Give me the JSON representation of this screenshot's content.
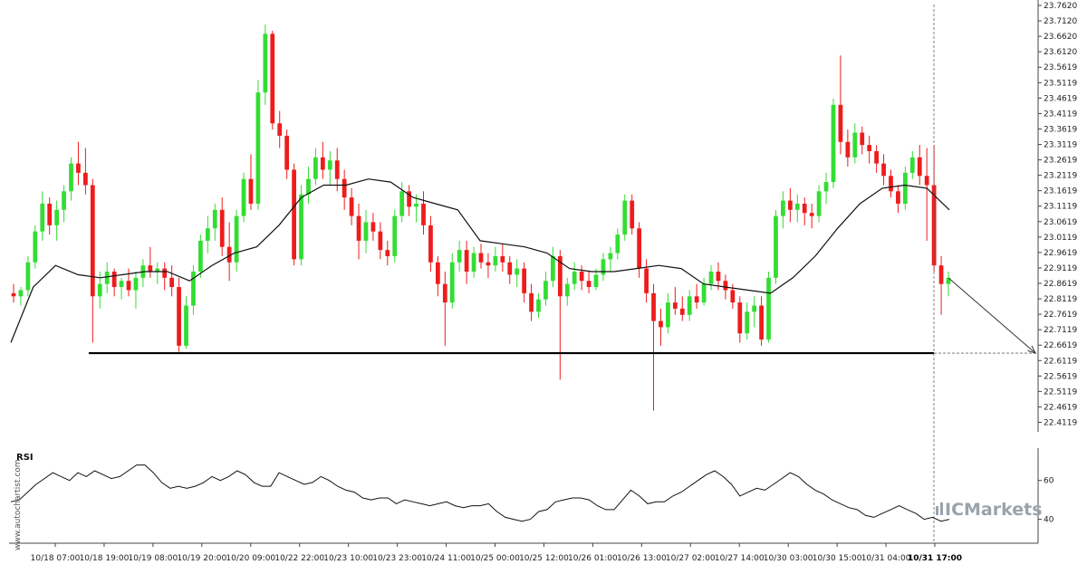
{
  "chart_data": [
    {
      "type": "candlestick",
      "colors": {
        "up": "#33dd33",
        "down": "#ee1c1c",
        "ma_line": "#111111",
        "support": "#000000",
        "projection": "#333333"
      },
      "y_axis": {
        "ticks": [
          "23.7620",
          "23.7120",
          "23.6620",
          "23.6120",
          "23.5619",
          "23.5119",
          "23.4619",
          "23.4119",
          "23.3619",
          "23.3119",
          "23.2619",
          "23.2119",
          "23.1619",
          "23.1119",
          "23.0619",
          "23.0119",
          "22.9619",
          "22.9119",
          "22.8619",
          "22.8119",
          "22.7619",
          "22.7119",
          "22.6619",
          "22.6119",
          "22.5619",
          "22.5119",
          "22.4619",
          "22.4119"
        ],
        "range": [
          22.3869,
          23.762
        ],
        "position": "right"
      },
      "x_axis": {
        "ticks": [
          "10/18 07:00",
          "10/18 19:00",
          "10/19 08:00",
          "10/19 20:00",
          "10/20 09:00",
          "10/22 22:00",
          "10/23 10:00",
          "10/23 23:00",
          "10/24 11:00",
          "10/25 00:00",
          "10/25 12:00",
          "10/26 01:00",
          "10/26 13:00",
          "10/27 02:00",
          "10/27 14:00",
          "10/30 03:00",
          "10/30 15:00",
          "10/31 04:00",
          "10/31 17:00"
        ],
        "highlighted_tick": "10/31 17:00"
      },
      "support_level": 22.636,
      "projected_target": 22.636,
      "ma_anchor_values": [
        22.67,
        22.85,
        22.92,
        22.89,
        22.88,
        22.89,
        22.9,
        22.9,
        22.87,
        22.92,
        22.96,
        22.98,
        23.05,
        23.14,
        23.18,
        23.18,
        23.2,
        23.19,
        23.14,
        23.12,
        23.1,
        23.0,
        22.99,
        22.98,
        22.96,
        22.91,
        22.9,
        22.9,
        22.91,
        22.92,
        22.91,
        22.86,
        22.85,
        22.84,
        22.83,
        22.88,
        22.95,
        23.04,
        23.12,
        23.17,
        23.18,
        23.17,
        23.1
      ],
      "candles": [
        {
          "o": 22.83,
          "h": 22.86,
          "l": 22.8,
          "c": 22.82
        },
        {
          "o": 22.82,
          "h": 22.85,
          "l": 22.79,
          "c": 22.84
        },
        {
          "o": 22.84,
          "h": 22.95,
          "l": 22.82,
          "c": 22.93
        },
        {
          "o": 22.93,
          "h": 23.05,
          "l": 22.91,
          "c": 23.03
        },
        {
          "o": 23.03,
          "h": 23.16,
          "l": 23.0,
          "c": 23.12
        },
        {
          "o": 23.12,
          "h": 23.14,
          "l": 23.02,
          "c": 23.05
        },
        {
          "o": 23.05,
          "h": 23.13,
          "l": 23.0,
          "c": 23.1
        },
        {
          "o": 23.1,
          "h": 23.18,
          "l": 23.06,
          "c": 23.16
        },
        {
          "o": 23.16,
          "h": 23.27,
          "l": 23.13,
          "c": 23.25
        },
        {
          "o": 23.25,
          "h": 23.32,
          "l": 23.18,
          "c": 23.22
        },
        {
          "o": 23.22,
          "h": 23.3,
          "l": 23.15,
          "c": 23.18
        },
        {
          "o": 23.18,
          "h": 23.2,
          "l": 22.67,
          "c": 22.82
        },
        {
          "o": 22.82,
          "h": 22.9,
          "l": 22.78,
          "c": 22.86
        },
        {
          "o": 22.86,
          "h": 22.93,
          "l": 22.83,
          "c": 22.9
        },
        {
          "o": 22.9,
          "h": 22.91,
          "l": 22.82,
          "c": 22.85
        },
        {
          "o": 22.85,
          "h": 22.88,
          "l": 22.81,
          "c": 22.87
        },
        {
          "o": 22.87,
          "h": 22.91,
          "l": 22.82,
          "c": 22.84
        },
        {
          "o": 22.84,
          "h": 22.9,
          "l": 22.78,
          "c": 22.88
        },
        {
          "o": 22.88,
          "h": 22.94,
          "l": 22.85,
          "c": 22.92
        },
        {
          "o": 22.92,
          "h": 22.98,
          "l": 22.88,
          "c": 22.9
        },
        {
          "o": 22.9,
          "h": 22.93,
          "l": 22.86,
          "c": 22.91
        },
        {
          "o": 22.91,
          "h": 22.93,
          "l": 22.84,
          "c": 22.88
        },
        {
          "o": 22.88,
          "h": 22.92,
          "l": 22.82,
          "c": 22.85
        },
        {
          "o": 22.85,
          "h": 22.88,
          "l": 22.64,
          "c": 22.66
        },
        {
          "o": 22.66,
          "h": 22.82,
          "l": 22.65,
          "c": 22.79
        },
        {
          "o": 22.79,
          "h": 22.92,
          "l": 22.76,
          "c": 22.9
        },
        {
          "o": 22.9,
          "h": 23.02,
          "l": 22.88,
          "c": 23.0
        },
        {
          "o": 23.0,
          "h": 23.08,
          "l": 22.96,
          "c": 23.04
        },
        {
          "o": 23.04,
          "h": 23.12,
          "l": 23.0,
          "c": 23.1
        },
        {
          "o": 23.1,
          "h": 23.14,
          "l": 22.95,
          "c": 22.98
        },
        {
          "o": 22.98,
          "h": 23.06,
          "l": 22.87,
          "c": 22.93
        },
        {
          "o": 22.93,
          "h": 23.1,
          "l": 22.9,
          "c": 23.08
        },
        {
          "o": 23.08,
          "h": 23.22,
          "l": 23.06,
          "c": 23.2
        },
        {
          "o": 23.2,
          "h": 23.28,
          "l": 23.1,
          "c": 23.12
        },
        {
          "o": 23.12,
          "h": 23.52,
          "l": 23.1,
          "c": 23.48
        },
        {
          "o": 23.48,
          "h": 23.7,
          "l": 23.44,
          "c": 23.67
        },
        {
          "o": 23.67,
          "h": 23.68,
          "l": 23.36,
          "c": 23.38
        },
        {
          "o": 23.38,
          "h": 23.42,
          "l": 23.3,
          "c": 23.34
        },
        {
          "o": 23.34,
          "h": 23.36,
          "l": 23.2,
          "c": 23.23
        },
        {
          "o": 23.23,
          "h": 23.25,
          "l": 22.92,
          "c": 22.94
        },
        {
          "o": 22.94,
          "h": 23.18,
          "l": 22.92,
          "c": 23.15
        },
        {
          "o": 23.15,
          "h": 23.24,
          "l": 23.12,
          "c": 23.2
        },
        {
          "o": 23.2,
          "h": 23.3,
          "l": 23.18,
          "c": 23.27
        },
        {
          "o": 23.27,
          "h": 23.32,
          "l": 23.2,
          "c": 23.23
        },
        {
          "o": 23.23,
          "h": 23.29,
          "l": 23.18,
          "c": 23.26
        },
        {
          "o": 23.26,
          "h": 23.3,
          "l": 23.16,
          "c": 23.2
        },
        {
          "o": 23.2,
          "h": 23.23,
          "l": 23.1,
          "c": 23.14
        },
        {
          "o": 23.14,
          "h": 23.17,
          "l": 23.05,
          "c": 23.08
        },
        {
          "o": 23.08,
          "h": 23.12,
          "l": 22.94,
          "c": 23.0
        },
        {
          "o": 23.0,
          "h": 23.1,
          "l": 22.96,
          "c": 23.06
        },
        {
          "o": 23.06,
          "h": 23.09,
          "l": 23.0,
          "c": 23.03
        },
        {
          "o": 23.03,
          "h": 23.06,
          "l": 22.94,
          "c": 22.97
        },
        {
          "o": 22.97,
          "h": 23.0,
          "l": 22.92,
          "c": 22.95
        },
        {
          "o": 22.95,
          "h": 23.1,
          "l": 22.93,
          "c": 23.08
        },
        {
          "o": 23.08,
          "h": 23.19,
          "l": 23.06,
          "c": 23.16
        },
        {
          "o": 23.16,
          "h": 23.18,
          "l": 23.08,
          "c": 23.11
        },
        {
          "o": 23.11,
          "h": 23.15,
          "l": 23.06,
          "c": 23.12
        },
        {
          "o": 23.12,
          "h": 23.16,
          "l": 23.02,
          "c": 23.05
        },
        {
          "o": 23.05,
          "h": 23.08,
          "l": 22.9,
          "c": 22.93
        },
        {
          "o": 22.93,
          "h": 22.95,
          "l": 22.82,
          "c": 22.86
        },
        {
          "o": 22.86,
          "h": 22.9,
          "l": 22.66,
          "c": 22.8
        },
        {
          "o": 22.8,
          "h": 22.96,
          "l": 22.78,
          "c": 22.93
        },
        {
          "o": 22.93,
          "h": 23.0,
          "l": 22.9,
          "c": 22.97
        },
        {
          "o": 22.97,
          "h": 23.0,
          "l": 22.86,
          "c": 22.9
        },
        {
          "o": 22.9,
          "h": 22.98,
          "l": 22.88,
          "c": 22.96
        },
        {
          "o": 22.96,
          "h": 22.99,
          "l": 22.91,
          "c": 22.93
        },
        {
          "o": 22.93,
          "h": 22.96,
          "l": 22.88,
          "c": 22.92
        },
        {
          "o": 22.92,
          "h": 22.98,
          "l": 22.9,
          "c": 22.95
        },
        {
          "o": 22.95,
          "h": 22.99,
          "l": 22.9,
          "c": 22.93
        },
        {
          "o": 22.93,
          "h": 22.95,
          "l": 22.86,
          "c": 22.89
        },
        {
          "o": 22.89,
          "h": 22.94,
          "l": 22.85,
          "c": 22.91
        },
        {
          "o": 22.91,
          "h": 22.93,
          "l": 22.8,
          "c": 22.83
        },
        {
          "o": 22.83,
          "h": 22.86,
          "l": 22.74,
          "c": 22.77
        },
        {
          "o": 22.77,
          "h": 22.83,
          "l": 22.75,
          "c": 22.81
        },
        {
          "o": 22.81,
          "h": 22.9,
          "l": 22.79,
          "c": 22.87
        },
        {
          "o": 22.87,
          "h": 22.98,
          "l": 22.85,
          "c": 22.95
        },
        {
          "o": 22.95,
          "h": 22.97,
          "l": 22.55,
          "c": 22.82
        },
        {
          "o": 22.82,
          "h": 22.88,
          "l": 22.79,
          "c": 22.86
        },
        {
          "o": 22.86,
          "h": 22.93,
          "l": 22.84,
          "c": 22.9
        },
        {
          "o": 22.9,
          "h": 22.92,
          "l": 22.84,
          "c": 22.87
        },
        {
          "o": 22.87,
          "h": 22.9,
          "l": 22.83,
          "c": 22.85
        },
        {
          "o": 22.85,
          "h": 22.91,
          "l": 22.84,
          "c": 22.89
        },
        {
          "o": 22.89,
          "h": 22.96,
          "l": 22.87,
          "c": 22.94
        },
        {
          "o": 22.94,
          "h": 22.98,
          "l": 22.9,
          "c": 22.96
        },
        {
          "o": 22.96,
          "h": 23.04,
          "l": 22.94,
          "c": 23.02
        },
        {
          "o": 23.02,
          "h": 23.15,
          "l": 23.0,
          "c": 23.13
        },
        {
          "o": 23.13,
          "h": 23.15,
          "l": 23.02,
          "c": 23.04
        },
        {
          "o": 23.04,
          "h": 23.06,
          "l": 22.88,
          "c": 22.91
        },
        {
          "o": 22.91,
          "h": 22.94,
          "l": 22.8,
          "c": 22.83
        },
        {
          "o": 22.83,
          "h": 22.86,
          "l": 22.45,
          "c": 22.74
        },
        {
          "o": 22.74,
          "h": 22.78,
          "l": 22.66,
          "c": 22.72
        },
        {
          "o": 22.72,
          "h": 22.83,
          "l": 22.7,
          "c": 22.8
        },
        {
          "o": 22.8,
          "h": 22.85,
          "l": 22.76,
          "c": 22.78
        },
        {
          "o": 22.78,
          "h": 22.82,
          "l": 22.74,
          "c": 22.76
        },
        {
          "o": 22.76,
          "h": 22.84,
          "l": 22.74,
          "c": 22.82
        },
        {
          "o": 22.82,
          "h": 22.86,
          "l": 22.78,
          "c": 22.8
        },
        {
          "o": 22.8,
          "h": 22.88,
          "l": 22.79,
          "c": 22.86
        },
        {
          "o": 22.86,
          "h": 22.92,
          "l": 22.84,
          "c": 22.9
        },
        {
          "o": 22.9,
          "h": 22.93,
          "l": 22.84,
          "c": 22.87
        },
        {
          "o": 22.87,
          "h": 22.89,
          "l": 22.81,
          "c": 22.84
        },
        {
          "o": 22.84,
          "h": 22.86,
          "l": 22.78,
          "c": 22.8
        },
        {
          "o": 22.8,
          "h": 22.82,
          "l": 22.67,
          "c": 22.7
        },
        {
          "o": 22.7,
          "h": 22.8,
          "l": 22.68,
          "c": 22.77
        },
        {
          "o": 22.77,
          "h": 22.82,
          "l": 22.72,
          "c": 22.79
        },
        {
          "o": 22.79,
          "h": 22.82,
          "l": 22.66,
          "c": 22.68
        },
        {
          "o": 22.68,
          "h": 22.9,
          "l": 22.67,
          "c": 22.88
        },
        {
          "o": 22.88,
          "h": 23.1,
          "l": 22.86,
          "c": 23.08
        },
        {
          "o": 23.08,
          "h": 23.16,
          "l": 23.04,
          "c": 23.13
        },
        {
          "o": 23.13,
          "h": 23.17,
          "l": 23.06,
          "c": 23.1
        },
        {
          "o": 23.1,
          "h": 23.15,
          "l": 23.06,
          "c": 23.12
        },
        {
          "o": 23.12,
          "h": 23.14,
          "l": 23.05,
          "c": 23.09
        },
        {
          "o": 23.09,
          "h": 23.12,
          "l": 23.04,
          "c": 23.08
        },
        {
          "o": 23.08,
          "h": 23.18,
          "l": 23.06,
          "c": 23.16
        },
        {
          "o": 23.16,
          "h": 23.22,
          "l": 23.12,
          "c": 23.19
        },
        {
          "o": 23.19,
          "h": 23.46,
          "l": 23.17,
          "c": 23.44
        },
        {
          "o": 23.44,
          "h": 23.6,
          "l": 23.28,
          "c": 23.32
        },
        {
          "o": 23.32,
          "h": 23.36,
          "l": 23.24,
          "c": 23.27
        },
        {
          "o": 23.27,
          "h": 23.38,
          "l": 23.25,
          "c": 23.35
        },
        {
          "o": 23.35,
          "h": 23.37,
          "l": 23.28,
          "c": 23.31
        },
        {
          "o": 23.31,
          "h": 23.34,
          "l": 23.25,
          "c": 23.29
        },
        {
          "o": 23.29,
          "h": 23.31,
          "l": 23.22,
          "c": 23.25
        },
        {
          "o": 23.25,
          "h": 23.28,
          "l": 23.18,
          "c": 23.21
        },
        {
          "o": 23.21,
          "h": 23.23,
          "l": 23.14,
          "c": 23.16
        },
        {
          "o": 23.16,
          "h": 23.18,
          "l": 23.09,
          "c": 23.12
        },
        {
          "o": 23.12,
          "h": 23.24,
          "l": 23.1,
          "c": 23.22
        },
        {
          "o": 23.22,
          "h": 23.29,
          "l": 23.2,
          "c": 23.27
        },
        {
          "o": 23.27,
          "h": 23.31,
          "l": 23.18,
          "c": 23.21
        },
        {
          "o": 23.21,
          "h": 23.3,
          "l": 23.0,
          "c": 23.18
        },
        {
          "o": 23.18,
          "h": 23.31,
          "l": 22.9,
          "c": 22.92
        },
        {
          "o": 22.92,
          "h": 22.95,
          "l": 22.76,
          "c": 22.86
        },
        {
          "o": 22.86,
          "h": 22.9,
          "l": 22.82,
          "c": 22.88
        }
      ],
      "rsi": {
        "label": "RSI",
        "ticks": [
          "60",
          "40"
        ],
        "range": [
          30,
          72
        ],
        "values": [
          49,
          50,
          54,
          58,
          61,
          64,
          62,
          60,
          64,
          62,
          65,
          63,
          61,
          62,
          65,
          68,
          68,
          64,
          59,
          56,
          57,
          56,
          57,
          59,
          62,
          60,
          62,
          65,
          63,
          59,
          57,
          57,
          64,
          62,
          60,
          58,
          59,
          62,
          60,
          57,
          55,
          54,
          51,
          50,
          51,
          51,
          48,
          50,
          49,
          48,
          47,
          48,
          49,
          47,
          46,
          47,
          47,
          48,
          44,
          41,
          40,
          39,
          40,
          44,
          45,
          49,
          50,
          51,
          51,
          50,
          47,
          45,
          45,
          50,
          55,
          52,
          48,
          49,
          49,
          52,
          54,
          57,
          60,
          63,
          65,
          62,
          58,
          52,
          54,
          56,
          55,
          58,
          61,
          64,
          62,
          58,
          55,
          53,
          50,
          48,
          46,
          45,
          42,
          41,
          43,
          45,
          47,
          45,
          43,
          40,
          41,
          39,
          40
        ]
      },
      "watermark": "www.autochartist.com",
      "brand": "ICMarkets"
    }
  ]
}
